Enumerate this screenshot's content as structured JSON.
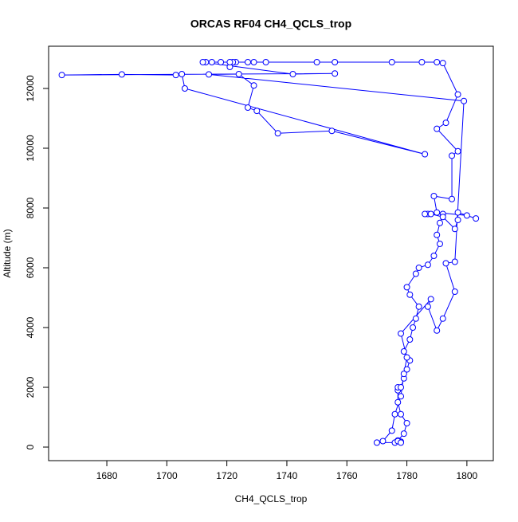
{
  "chart_data": {
    "type": "line",
    "title": "ORCAS RF04 CH4_QCLS_trop",
    "x_label": "CH4_QCLS_trop",
    "y_label": "Altitude (m)",
    "color": "#0000ff",
    "marker": "open-circle",
    "x": [
      1778,
      1777,
      1779,
      1780,
      1778,
      1777,
      1777,
      1777,
      1778,
      1779,
      1780,
      1781,
      1779,
      1781,
      1782,
      1783,
      1784,
      1781,
      1780,
      1783,
      1784,
      1787,
      1789,
      1791,
      1790,
      1791,
      1792,
      1787,
      1786,
      1788,
      1792,
      1796,
      1797,
      1797,
      1803,
      1800,
      1790,
      1789,
      1795,
      1795,
      1797,
      1790,
      1793,
      1797,
      1792,
      1790,
      1785,
      1775,
      1756,
      1750,
      1733,
      1729,
      1727,
      1723,
      1722,
      1721,
      1721,
      1718,
      1715,
      1713,
      1712,
      1742,
      1756,
      1665,
      1685,
      1703,
      1705,
      1706,
      1786,
      1755,
      1737,
      1730,
      1727,
      1729,
      1724,
      1714,
      1799,
      1796,
      1793,
      1796,
      1792,
      1790,
      1787,
      1788,
      1778,
      1780,
      1779,
      1778,
      1776,
      1775,
      1772,
      1770,
      1776,
      1777,
      1778
    ],
    "values": [
      180,
      220,
      450,
      800,
      1100,
      1500,
      1900,
      2000,
      2000,
      2300,
      2600,
      2900,
      3200,
      3600,
      4000,
      4300,
      4700,
      5100,
      5350,
      5800,
      6000,
      6100,
      6400,
      6800,
      7100,
      7500,
      7800,
      7800,
      7800,
      7800,
      7700,
      7300,
      7600,
      7850,
      7650,
      7750,
      7850,
      8400,
      8300,
      9750,
      9900,
      10650,
      10850,
      11800,
      12850,
      12880,
      12880,
      12880,
      12880,
      12880,
      12880,
      12880,
      12880,
      12880,
      12880,
      12720,
      12880,
      12880,
      12880,
      12880,
      12880,
      12480,
      12500,
      12450,
      12470,
      12450,
      12480,
      12000,
      9800,
      10580,
      10500,
      11250,
      11360,
      12100,
      12480,
      12470,
      11580,
      6200,
      6150,
      5200,
      4300,
      3900,
      4700,
      4950,
      3800,
      3000,
      2450,
      1700,
      1100,
      550,
      200,
      150,
      150,
      200,
      150
    ],
    "xlim": [
      1660.6,
      1808.8
    ],
    "ylim": [
      -453,
      13413
    ],
    "xticks": [
      1680,
      1700,
      1720,
      1740,
      1760,
      1780,
      1800
    ],
    "yticks": [
      0,
      2000,
      4000,
      6000,
      8000,
      10000,
      12000
    ]
  }
}
